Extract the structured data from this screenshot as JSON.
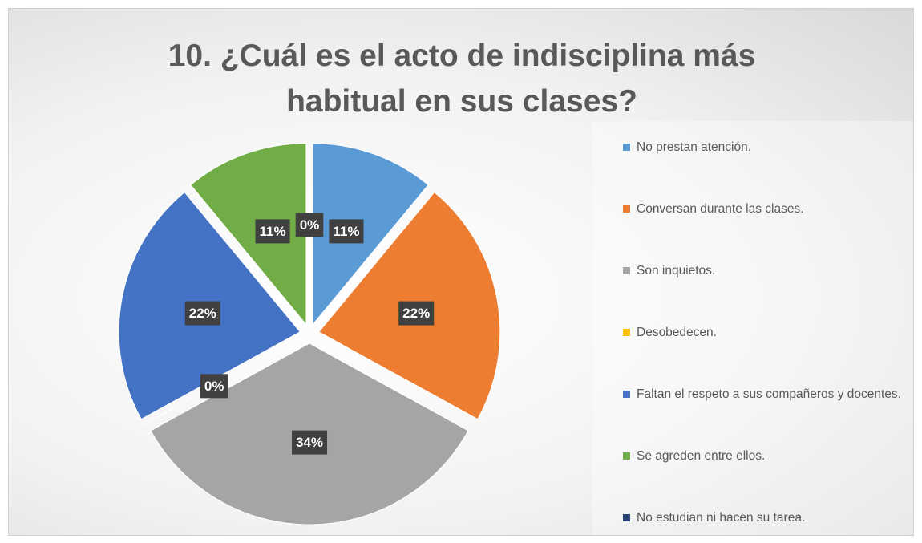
{
  "chart_data": {
    "type": "pie",
    "title": "10.  ¿Cuál es el acto de indisciplina más habitual en sus clases?",
    "categories": [
      "No prestan atención.",
      "Conversan durante las clases.",
      "Son inquietos.",
      "Desobedecen.",
      "Faltan el respeto a sus compañeros y docentes.",
      "Se agreden entre ellos.",
      "No estudian ni hacen su tarea."
    ],
    "values": [
      11,
      22,
      34,
      0,
      22,
      11,
      0
    ],
    "value_labels": [
      "11%",
      "22%",
      "34%",
      "0%",
      "22%",
      "11%",
      "0%"
    ],
    "colors": [
      "#5b9bd5",
      "#ed7d31",
      "#a5a5a5",
      "#ffc000",
      "#4472c4",
      "#70ad47",
      "#264478"
    ],
    "legend": "right"
  }
}
